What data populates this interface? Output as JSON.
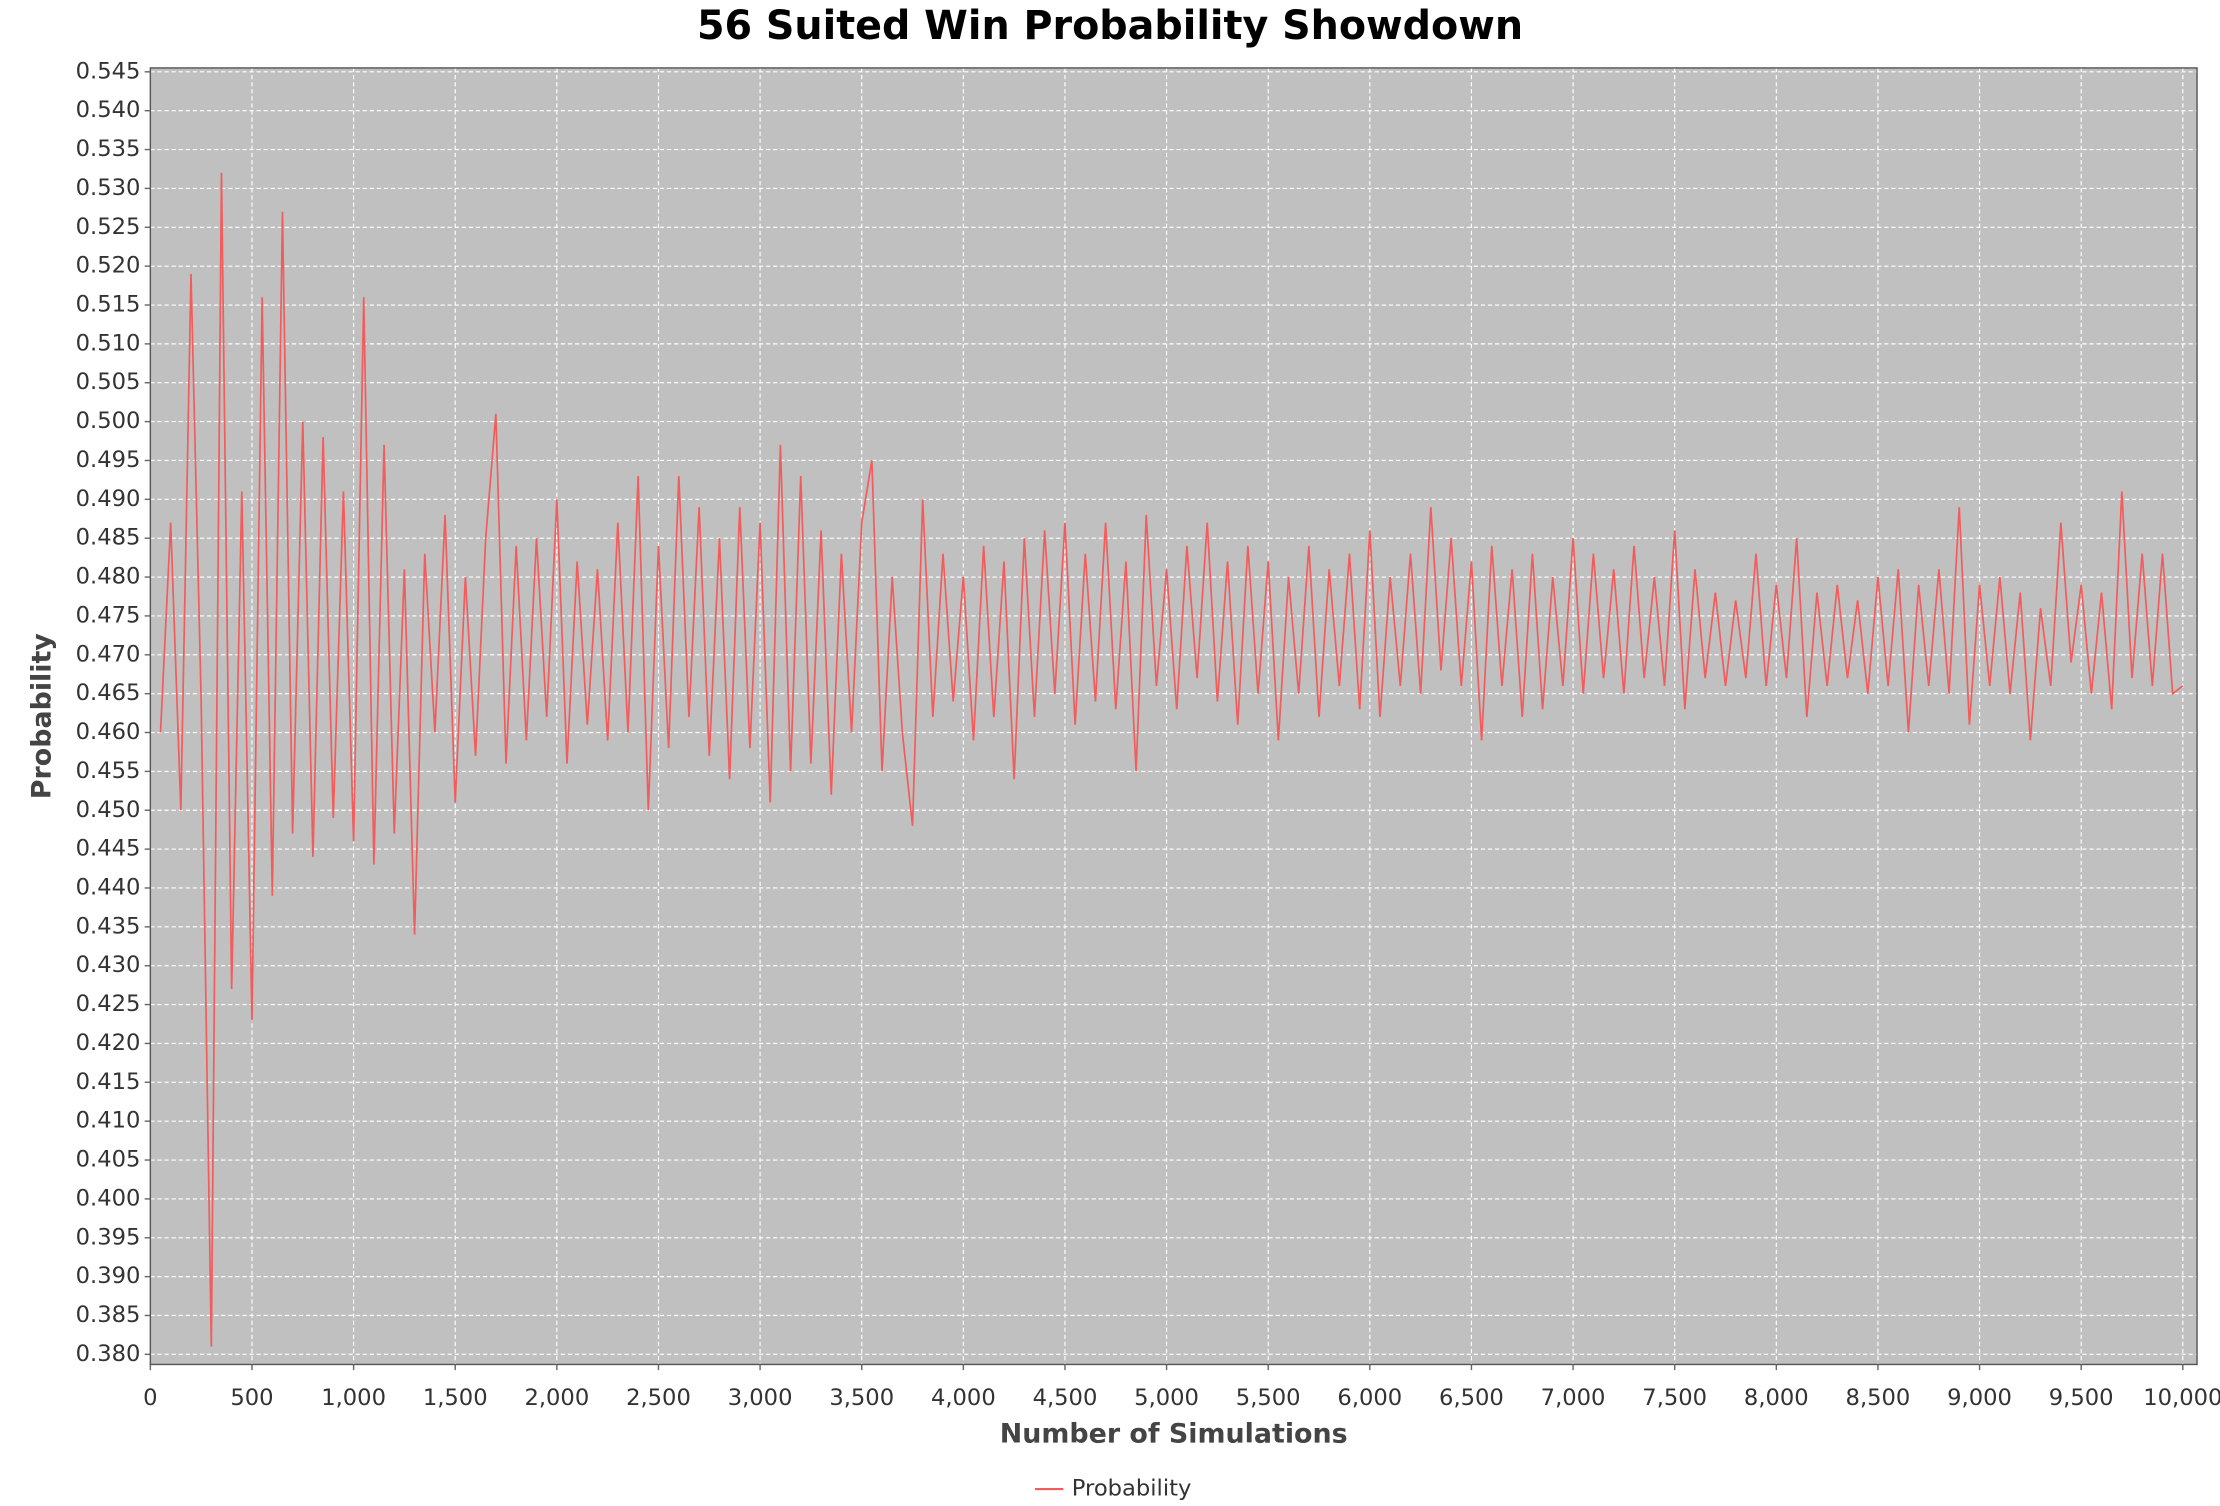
{
  "chart_data": {
    "type": "line",
    "title": "56 Suited Win Probability Showdown",
    "x_label": "Number of Simulations",
    "y_label": "Probability",
    "grid": true,
    "legend": "bottom",
    "xlim": [
      0,
      10070
    ],
    "ylim": [
      0.3787,
      0.5455
    ],
    "xticks": [
      0,
      500,
      {
        "value": 1000,
        "label": "1,000"
      },
      {
        "value": 1500,
        "label": "1,500"
      },
      {
        "value": 2000,
        "label": "2,000"
      },
      {
        "value": 2500,
        "label": "2,500"
      },
      {
        "value": 3000,
        "label": "3,000"
      },
      {
        "value": 3500,
        "label": "3,500"
      },
      {
        "value": 4000,
        "label": "4,000"
      },
      {
        "value": 4500,
        "label": "4,500"
      },
      {
        "value": 5000,
        "label": "5,000"
      },
      {
        "value": 5500,
        "label": "5,500"
      },
      {
        "value": 6000,
        "label": "6,000"
      },
      {
        "value": 6500,
        "label": "6,500"
      },
      {
        "value": 7000,
        "label": "7,000"
      },
      {
        "value": 7500,
        "label": "7,500"
      },
      {
        "value": 8000,
        "label": "8,000"
      },
      {
        "value": 8500,
        "label": "8,500"
      },
      {
        "value": 9000,
        "label": "9,000"
      },
      {
        "value": 9500,
        "label": "9,500"
      },
      {
        "value": 10000,
        "label": "10,000"
      }
    ],
    "yticks": [
      {
        "value": 0.38,
        "label": "0.380"
      },
      0.385,
      {
        "value": 0.39,
        "label": "0.390"
      },
      0.395,
      {
        "value": 0.4,
        "label": "0.400"
      },
      0.405,
      {
        "value": 0.41,
        "label": "0.410"
      },
      0.415,
      {
        "value": 0.42,
        "label": "0.420"
      },
      0.425,
      {
        "value": 0.43,
        "label": "0.430"
      },
      0.435,
      {
        "value": 0.44,
        "label": "0.440"
      },
      0.445,
      {
        "value": 0.45,
        "label": "0.450"
      },
      0.455,
      {
        "value": 0.46,
        "label": "0.460"
      },
      0.465,
      {
        "value": 0.47,
        "label": "0.470"
      },
      0.475,
      {
        "value": 0.48,
        "label": "0.480"
      },
      0.485,
      {
        "value": 0.49,
        "label": "0.490"
      },
      0.495,
      {
        "value": 0.5,
        "label": "0.500"
      },
      0.505,
      {
        "value": 0.51,
        "label": "0.510"
      },
      0.515,
      {
        "value": 0.52,
        "label": "0.520"
      },
      0.525,
      {
        "value": 0.53,
        "label": "0.530"
      },
      0.535,
      {
        "value": 0.54,
        "label": "0.540"
      },
      0.545
    ],
    "x": [
      50,
      100,
      150,
      200,
      250,
      300,
      350,
      400,
      450,
      500,
      550,
      600,
      650,
      700,
      750,
      800,
      850,
      900,
      950,
      1000,
      1050,
      1100,
      1150,
      1200,
      1250,
      1300,
      1350,
      1400,
      1450,
      1500,
      1550,
      1600,
      1650,
      1700,
      1750,
      1800,
      1850,
      1900,
      1950,
      2000,
      2050,
      2100,
      2150,
      2200,
      2250,
      2300,
      2350,
      2400,
      2450,
      2500,
      2550,
      2600,
      2650,
      2700,
      2750,
      2800,
      2850,
      2900,
      2950,
      3000,
      3050,
      3100,
      3150,
      3200,
      3250,
      3300,
      3350,
      3400,
      3450,
      3500,
      3550,
      3600,
      3650,
      3700,
      3750,
      3800,
      3850,
      3900,
      3950,
      4000,
      4050,
      4100,
      4150,
      4200,
      4250,
      4300,
      4350,
      4400,
      4450,
      4500,
      4550,
      4600,
      4650,
      4700,
      4750,
      4800,
      4850,
      4900,
      4950,
      5000,
      5050,
      5100,
      5150,
      5200,
      5250,
      5300,
      5350,
      5400,
      5450,
      5500,
      5550,
      5600,
      5650,
      5700,
      5750,
      5800,
      5850,
      5900,
      5950,
      6000,
      6050,
      6100,
      6150,
      6200,
      6250,
      6300,
      6350,
      6400,
      6450,
      6500,
      6550,
      6600,
      6650,
      6700,
      6750,
      6800,
      6850,
      6900,
      6950,
      7000,
      7050,
      7100,
      7150,
      7200,
      7250,
      7300,
      7350,
      7400,
      7450,
      7500,
      7550,
      7600,
      7650,
      7700,
      7750,
      7800,
      7850,
      7900,
      7950,
      8000,
      8050,
      8100,
      8150,
      8200,
      8250,
      8300,
      8350,
      8400,
      8450,
      8500,
      8550,
      8600,
      8650,
      8700,
      8750,
      8800,
      8850,
      8900,
      8950,
      9000,
      9050,
      9100,
      9150,
      9200,
      9250,
      9300,
      9350,
      9400,
      9450,
      9500,
      9550,
      9600,
      9650,
      9700,
      9750,
      9800,
      9850,
      9900,
      9950,
      10000
    ],
    "series": [
      {
        "name": "Probability",
        "color": "#f25c5c",
        "values": [
          0.46,
          0.487,
          0.45,
          0.519,
          0.464,
          0.381,
          0.532,
          0.427,
          0.491,
          0.423,
          0.516,
          0.439,
          0.527,
          0.447,
          0.5,
          0.444,
          0.498,
          0.449,
          0.491,
          0.446,
          0.516,
          0.443,
          0.497,
          0.447,
          0.481,
          0.434,
          0.483,
          0.46,
          0.488,
          0.451,
          0.48,
          0.457,
          0.485,
          0.501,
          0.456,
          0.484,
          0.459,
          0.485,
          0.462,
          0.49,
          0.456,
          0.482,
          0.461,
          0.481,
          0.459,
          0.487,
          0.46,
          0.493,
          0.45,
          0.484,
          0.458,
          0.493,
          0.462,
          0.489,
          0.457,
          0.485,
          0.454,
          0.489,
          0.458,
          0.487,
          0.451,
          0.497,
          0.455,
          0.493,
          0.456,
          0.486,
          0.452,
          0.483,
          0.46,
          0.487,
          0.495,
          0.455,
          0.48,
          0.46,
          0.448,
          0.49,
          0.462,
          0.483,
          0.464,
          0.48,
          0.459,
          0.484,
          0.462,
          0.482,
          0.454,
          0.485,
          0.462,
          0.486,
          0.465,
          0.487,
          0.461,
          0.483,
          0.464,
          0.487,
          0.463,
          0.482,
          0.455,
          0.488,
          0.466,
          0.481,
          0.463,
          0.484,
          0.467,
          0.487,
          0.464,
          0.482,
          0.461,
          0.484,
          0.465,
          0.482,
          0.459,
          0.48,
          0.465,
          0.484,
          0.462,
          0.481,
          0.466,
          0.483,
          0.463,
          0.486,
          0.462,
          0.48,
          0.466,
          0.483,
          0.465,
          0.489,
          0.468,
          0.485,
          0.466,
          0.482,
          0.459,
          0.484,
          0.466,
          0.481,
          0.462,
          0.483,
          0.463,
          0.48,
          0.466,
          0.485,
          0.465,
          0.483,
          0.467,
          0.481,
          0.465,
          0.484,
          0.467,
          0.48,
          0.466,
          0.486,
          0.463,
          0.481,
          0.467,
          0.478,
          0.466,
          0.477,
          0.467,
          0.483,
          0.466,
          0.479,
          0.467,
          0.485,
          0.462,
          0.478,
          0.466,
          0.479,
          0.467,
          0.477,
          0.465,
          0.48,
          0.466,
          0.481,
          0.46,
          0.479,
          0.466,
          0.481,
          0.465,
          0.489,
          0.461,
          0.479,
          0.466,
          0.48,
          0.465,
          0.478,
          0.459,
          0.476,
          0.466,
          0.487,
          0.469,
          0.479,
          0.465,
          0.478,
          0.463,
          0.491,
          0.467,
          0.483,
          0.466,
          0.483,
          0.465,
          0.466
        ]
      }
    ]
  }
}
